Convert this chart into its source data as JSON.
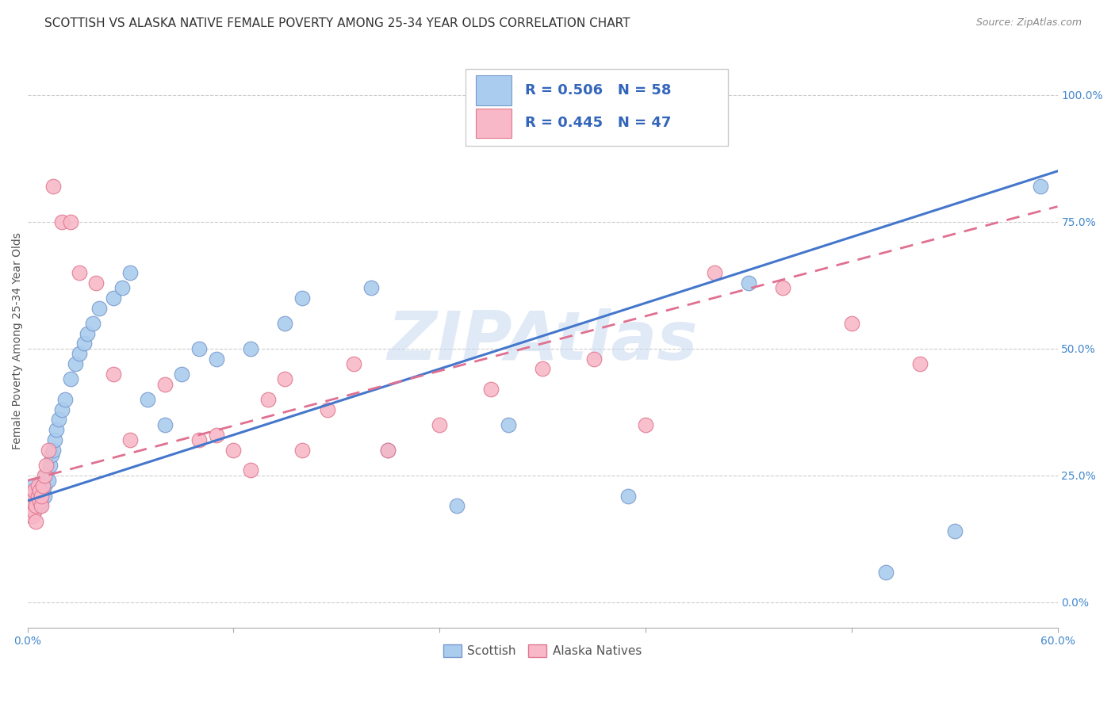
{
  "title": "SCOTTISH VS ALASKA NATIVE FEMALE POVERTY AMONG 25-34 YEAR OLDS CORRELATION CHART",
  "source": "Source: ZipAtlas.com",
  "ylabel": "Female Poverty Among 25-34 Year Olds",
  "xlim": [
    0.0,
    0.6
  ],
  "ylim": [
    -0.05,
    1.08
  ],
  "xticks": [
    0.0,
    0.12,
    0.24,
    0.36,
    0.48,
    0.6
  ],
  "xticklabels": [
    "0.0%",
    "",
    "",
    "",
    "",
    "60.0%"
  ],
  "yticks_right": [
    0.0,
    0.25,
    0.5,
    0.75,
    1.0
  ],
  "ytick_right_labels": [
    "0.0%",
    "25.0%",
    "50.0%",
    "75.0%",
    "100.0%"
  ],
  "scottish_color": "#aaccee",
  "alaska_color": "#f8b8c8",
  "scottish_edge": "#7799cc",
  "alaska_edge": "#e07890",
  "trend_blue": "#4477cc",
  "trend_pink": "#e07090",
  "watermark": "ZIPAtlas",
  "watermark_color": "#c8d8f0",
  "legend_R_scottish": "0.506",
  "legend_N_scottish": "58",
  "legend_R_alaska": "0.445",
  "legend_N_alaska": "47",
  "title_fontsize": 11,
  "axis_label_fontsize": 10,
  "tick_fontsize": 10,
  "scottish_x": [
    0.001,
    0.001,
    0.001,
    0.002,
    0.002,
    0.002,
    0.003,
    0.003,
    0.004,
    0.004,
    0.005,
    0.005,
    0.006,
    0.006,
    0.007,
    0.007,
    0.008,
    0.008,
    0.009,
    0.01,
    0.01,
    0.011,
    0.012,
    0.013,
    0.014,
    0.015,
    0.016,
    0.017,
    0.018,
    0.02,
    0.022,
    0.025,
    0.028,
    0.03,
    0.033,
    0.035,
    0.038,
    0.042,
    0.05,
    0.055,
    0.06,
    0.07,
    0.08,
    0.09,
    0.1,
    0.11,
    0.13,
    0.15,
    0.16,
    0.2,
    0.21,
    0.25,
    0.28,
    0.35,
    0.42,
    0.5,
    0.54,
    0.59
  ],
  "scottish_y": [
    0.18,
    0.19,
    0.2,
    0.17,
    0.21,
    0.22,
    0.19,
    0.23,
    0.2,
    0.18,
    0.21,
    0.19,
    0.2,
    0.22,
    0.21,
    0.19,
    0.23,
    0.2,
    0.22,
    0.21,
    0.23,
    0.25,
    0.24,
    0.27,
    0.29,
    0.3,
    0.32,
    0.34,
    0.36,
    0.38,
    0.4,
    0.44,
    0.47,
    0.49,
    0.51,
    0.53,
    0.55,
    0.58,
    0.6,
    0.62,
    0.65,
    0.4,
    0.35,
    0.45,
    0.5,
    0.48,
    0.5,
    0.55,
    0.6,
    0.62,
    0.3,
    0.19,
    0.35,
    0.21,
    0.63,
    0.06,
    0.14,
    0.82
  ],
  "alaska_x": [
    0.001,
    0.001,
    0.002,
    0.002,
    0.003,
    0.003,
    0.004,
    0.004,
    0.005,
    0.005,
    0.006,
    0.006,
    0.007,
    0.007,
    0.008,
    0.008,
    0.009,
    0.01,
    0.011,
    0.012,
    0.015,
    0.02,
    0.025,
    0.03,
    0.04,
    0.05,
    0.06,
    0.08,
    0.1,
    0.11,
    0.12,
    0.13,
    0.14,
    0.15,
    0.16,
    0.175,
    0.19,
    0.21,
    0.24,
    0.27,
    0.3,
    0.33,
    0.36,
    0.4,
    0.44,
    0.48,
    0.52
  ],
  "alaska_y": [
    0.18,
    0.2,
    0.19,
    0.21,
    0.17,
    0.2,
    0.18,
    0.22,
    0.16,
    0.19,
    0.21,
    0.23,
    0.2,
    0.22,
    0.19,
    0.21,
    0.23,
    0.25,
    0.27,
    0.3,
    0.82,
    0.75,
    0.75,
    0.65,
    0.63,
    0.45,
    0.32,
    0.43,
    0.32,
    0.33,
    0.3,
    0.26,
    0.4,
    0.44,
    0.3,
    0.38,
    0.47,
    0.3,
    0.35,
    0.42,
    0.46,
    0.48,
    0.35,
    0.65,
    0.62,
    0.55,
    0.47
  ]
}
